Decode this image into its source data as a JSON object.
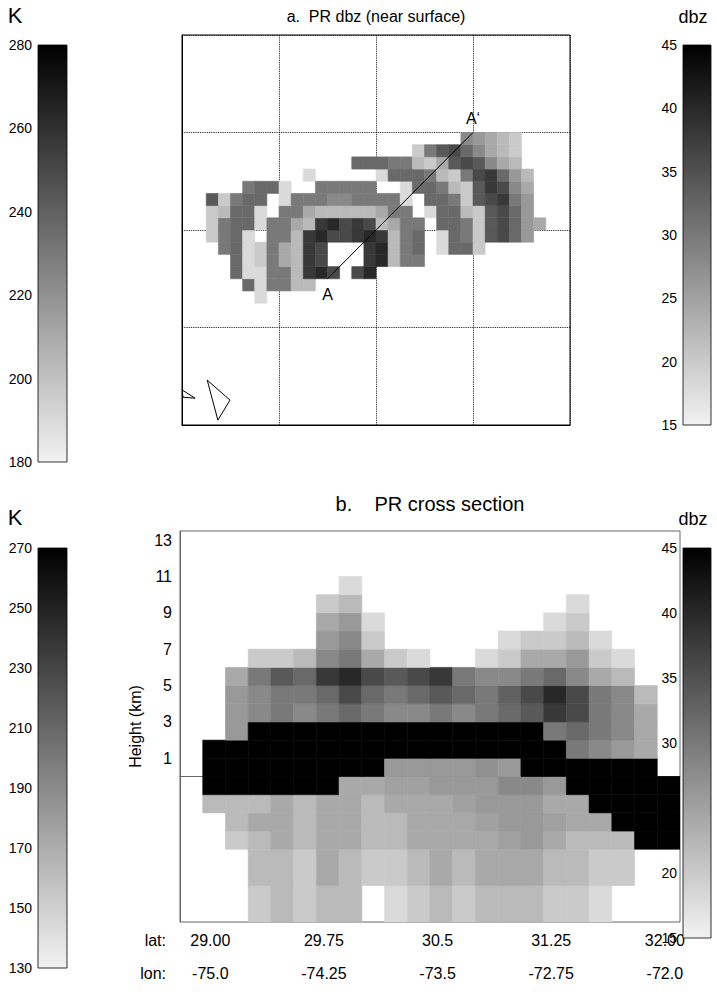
{
  "chart_data": [
    {
      "type": "heatmap",
      "title": "a.  PR dbz (near surface)",
      "xlim": [
        -78,
        -70
      ],
      "ylim": [
        26,
        34
      ],
      "xticks": [
        -78,
        -76,
        -74,
        -72,
        -70
      ],
      "yticks": [
        26,
        28,
        30,
        32,
        34
      ],
      "grid": true,
      "tick_labels": false,
      "x_edges": [
        -77.5,
        -77.25,
        -77,
        -76.75,
        -76.5,
        -76.25,
        -76,
        -75.75,
        -75.5,
        -75.25,
        -75,
        -74.75,
        -74.5,
        -74.25,
        -74,
        -73.75,
        -73.5,
        -73.25,
        -73,
        -72.75,
        -72.5,
        -72.25,
        -72,
        -71.75,
        -71.5,
        -71.25,
        -71,
        -70.75,
        -70.5
      ],
      "y_edges": [
        28.5,
        28.75,
        29,
        29.25,
        29.5,
        29.75,
        30,
        30.25,
        30.5,
        30.75,
        31,
        31.25,
        31.5,
        31.75,
        32
      ],
      "cells": [
        [
          null,
          null,
          null,
          null,
          18,
          null,
          null,
          null,
          null,
          null,
          null,
          null,
          null,
          null,
          null,
          null,
          null,
          null,
          null,
          null,
          null,
          null,
          null,
          null,
          null,
          null,
          null,
          null
        ],
        [
          null,
          null,
          null,
          32,
          18,
          30,
          30,
          22,
          22,
          null,
          null,
          null,
          null,
          null,
          null,
          null,
          null,
          null,
          null,
          null,
          null,
          null,
          null,
          null,
          null,
          null,
          null,
          null
        ],
        [
          null,
          null,
          32,
          18,
          18,
          30,
          30,
          22,
          38,
          40,
          36,
          null,
          36,
          40,
          null,
          null,
          null,
          null,
          null,
          null,
          null,
          null,
          null,
          null,
          null,
          null,
          null,
          null
        ],
        [
          null,
          null,
          32,
          18,
          20,
          30,
          24,
          22,
          38,
          36,
          null,
          null,
          null,
          38,
          40,
          22,
          30,
          30,
          null,
          null,
          null,
          null,
          null,
          null,
          null,
          null,
          null,
          null
        ],
        [
          null,
          30,
          32,
          18,
          20,
          30,
          24,
          22,
          38,
          36,
          null,
          null,
          null,
          38,
          40,
          22,
          30,
          32,
          null,
          18,
          32,
          32,
          20,
          null,
          null,
          null,
          null,
          null
        ],
        [
          20,
          30,
          32,
          18,
          null,
          30,
          30,
          22,
          38,
          40,
          36,
          36,
          38,
          40,
          38,
          22,
          30,
          32,
          null,
          18,
          32,
          30,
          20,
          34,
          36,
          32,
          26,
          null
        ],
        [
          20,
          30,
          32,
          32,
          18,
          30,
          30,
          24,
          22,
          38,
          40,
          36,
          38,
          36,
          22,
          24,
          30,
          30,
          null,
          32,
          32,
          30,
          20,
          34,
          36,
          32,
          26,
          24
        ],
        [
          20,
          22,
          32,
          32,
          18,
          null,
          30,
          30,
          24,
          22,
          22,
          22,
          22,
          22,
          24,
          30,
          30,
          null,
          18,
          32,
          32,
          22,
          20,
          34,
          36,
          32,
          26,
          null
        ],
        [
          34,
          20,
          30,
          32,
          32,
          null,
          18,
          30,
          30,
          30,
          28,
          28,
          30,
          30,
          30,
          30,
          18,
          null,
          32,
          32,
          30,
          20,
          34,
          36,
          38,
          30,
          26,
          null
        ],
        [
          null,
          null,
          null,
          30,
          32,
          32,
          18,
          null,
          null,
          30,
          30,
          30,
          30,
          30,
          null,
          null,
          18,
          32,
          32,
          30,
          22,
          20,
          34,
          38,
          36,
          28,
          24,
          null
        ],
        [
          null,
          null,
          null,
          null,
          null,
          null,
          null,
          null,
          18,
          null,
          null,
          null,
          null,
          null,
          18,
          32,
          32,
          32,
          30,
          22,
          20,
          30,
          36,
          38,
          32,
          26,
          22,
          null
        ],
        [
          null,
          null,
          null,
          null,
          null,
          null,
          null,
          null,
          null,
          null,
          null,
          null,
          32,
          32,
          32,
          30,
          30,
          22,
          20,
          24,
          34,
          36,
          34,
          28,
          24,
          22,
          null,
          null
        ],
        [
          null,
          null,
          null,
          null,
          null,
          null,
          null,
          null,
          null,
          null,
          null,
          null,
          null,
          null,
          null,
          null,
          null,
          20,
          30,
          34,
          36,
          32,
          28,
          24,
          22,
          20,
          null,
          null
        ],
        [
          null,
          null,
          null,
          null,
          null,
          null,
          null,
          null,
          null,
          null,
          null,
          null,
          null,
          null,
          null,
          null,
          null,
          null,
          null,
          null,
          null,
          28,
          26,
          24,
          22,
          20,
          null,
          null
        ]
      ],
      "coastline": [
        [
          [
            -77.48,
            26.92
          ],
          [
            -77.01,
            26.51
          ],
          [
            -77.26,
            26.1
          ],
          [
            -77.48,
            26.92
          ]
        ],
        [
          [
            -78,
            26.72
          ],
          [
            -77.73,
            26.55
          ],
          [
            -77.98,
            26.57
          ],
          [
            -78,
            26.72
          ]
        ]
      ],
      "section_line": {
        "x": [
          -75,
          -72
        ],
        "y": [
          29,
          32
        ],
        "labels": [
          "A",
          "A‘"
        ]
      },
      "colorbars": [
        {
          "title": "K",
          "range": [
            180,
            280
          ],
          "ticks": [
            180,
            200,
            220,
            240,
            260,
            280
          ]
        },
        {
          "title": "dbz",
          "range": [
            15,
            45
          ],
          "ticks": [
            15,
            20,
            25,
            30,
            35,
            40,
            45
          ]
        }
      ]
    },
    {
      "type": "heatmap",
      "title": "b.    PR cross section",
      "y_label": "Height (km)",
      "x_label": "lat:",
      "x2_label": "lon:",
      "xlim": [
        28.8,
        32.1
      ],
      "xticks": [
        {
          "value": 29,
          "label": "29.00"
        },
        29.75,
        30.5,
        31.25,
        {
          "value": 32,
          "label": "32.00"
        }
      ],
      "x2lim": [
        -75.2,
        -71.9
      ],
      "x2ticks": [
        {
          "value": -75,
          "label": "-75.0"
        },
        -74.25,
        -73.5,
        -72.75,
        {
          "value": -72,
          "label": "-72.0"
        }
      ],
      "ylim": [
        -8,
        13.5
      ],
      "yticks": [
        1,
        3,
        5,
        7,
        9,
        11,
        13
      ],
      "grid": false,
      "x_edges": [
        28.95,
        29.1,
        29.25,
        29.4,
        29.55,
        29.7,
        29.85,
        30,
        30.15,
        30.3,
        30.45,
        30.6,
        30.75,
        30.9,
        31.05,
        31.2,
        31.35,
        31.5,
        31.65,
        31.8,
        31.95,
        32.1
      ],
      "y_edges": [
        -8,
        -6,
        -4,
        -3,
        -2,
        -1,
        0,
        1,
        2,
        3,
        4,
        5,
        6,
        7,
        8,
        9,
        10,
        11
      ],
      "cells": [
        [
          null,
          null,
          20,
          22,
          20,
          22,
          22,
          null,
          18,
          20,
          22,
          20,
          22,
          22,
          22,
          20,
          20,
          18,
          null,
          null,
          null
        ],
        [
          null,
          null,
          22,
          22,
          20,
          24,
          22,
          20,
          20,
          22,
          24,
          22,
          24,
          24,
          24,
          22,
          22,
          20,
          20,
          null,
          null
        ],
        [
          null,
          20,
          22,
          24,
          22,
          24,
          24,
          22,
          22,
          24,
          24,
          24,
          24,
          25,
          26,
          24,
          22,
          22,
          22,
          45,
          45
        ],
        [
          null,
          22,
          24,
          24,
          22,
          24,
          24,
          22,
          22,
          24,
          24,
          24,
          25,
          26,
          26,
          25,
          24,
          24,
          45,
          45,
          45
        ],
        [
          22,
          22,
          22,
          24,
          22,
          24,
          24,
          22,
          24,
          24,
          24,
          25,
          26,
          26,
          26,
          24,
          24,
          45,
          45,
          45,
          45
        ],
        [
          45,
          45,
          45,
          45,
          45,
          45,
          24,
          24,
          25,
          25,
          26,
          26,
          26,
          28,
          28,
          26,
          45,
          45,
          45,
          45,
          45
        ],
        [
          45,
          45,
          45,
          45,
          45,
          45,
          45,
          45,
          26,
          26,
          26,
          26,
          27,
          26,
          45,
          45,
          45,
          45,
          45,
          45,
          null
        ],
        [
          45,
          45,
          45,
          45,
          45,
          45,
          45,
          45,
          45,
          45,
          45,
          45,
          45,
          45,
          45,
          45,
          30,
          28,
          26,
          24,
          null
        ],
        [
          null,
          26,
          45,
          45,
          45,
          45,
          45,
          45,
          45,
          45,
          45,
          45,
          45,
          45,
          45,
          30,
          32,
          30,
          28,
          24,
          null
        ],
        [
          null,
          26,
          28,
          30,
          28,
          30,
          32,
          30,
          28,
          28,
          30,
          28,
          30,
          32,
          34,
          38,
          36,
          30,
          28,
          24,
          null
        ],
        [
          null,
          26,
          28,
          30,
          30,
          32,
          36,
          32,
          30,
          32,
          34,
          32,
          30,
          33,
          36,
          40,
          36,
          30,
          28,
          22,
          null
        ],
        [
          null,
          24,
          30,
          34,
          32,
          38,
          40,
          36,
          34,
          36,
          38,
          30,
          28,
          28,
          30,
          32,
          28,
          24,
          22,
          null,
          null
        ],
        [
          null,
          null,
          20,
          20,
          22,
          28,
          30,
          24,
          20,
          18,
          null,
          null,
          18,
          20,
          24,
          24,
          26,
          20,
          18,
          null,
          null
        ],
        [
          null,
          null,
          null,
          null,
          null,
          26,
          28,
          20,
          null,
          null,
          null,
          null,
          null,
          18,
          20,
          20,
          22,
          18,
          null,
          null,
          null
        ],
        [
          null,
          null,
          null,
          null,
          null,
          24,
          26,
          18,
          null,
          null,
          null,
          null,
          null,
          null,
          null,
          18,
          20,
          null,
          null,
          null,
          null
        ],
        [
          null,
          null,
          null,
          null,
          null,
          20,
          22,
          null,
          null,
          null,
          null,
          null,
          null,
          null,
          null,
          null,
          18,
          null,
          null,
          null,
          null
        ],
        [
          null,
          null,
          null,
          null,
          null,
          null,
          18,
          null,
          null,
          null,
          null,
          null,
          null,
          null,
          null,
          null,
          null,
          null,
          null,
          null,
          null
        ]
      ],
      "colorbars": [
        {
          "title": "K",
          "range": [
            130,
            270
          ],
          "ticks": [
            130,
            150,
            170,
            190,
            210,
            230,
            250,
            270
          ]
        },
        {
          "title": "dbz",
          "range": [
            15,
            45
          ],
          "ticks": [
            15,
            20,
            25,
            30,
            35,
            40,
            45
          ]
        }
      ]
    }
  ]
}
